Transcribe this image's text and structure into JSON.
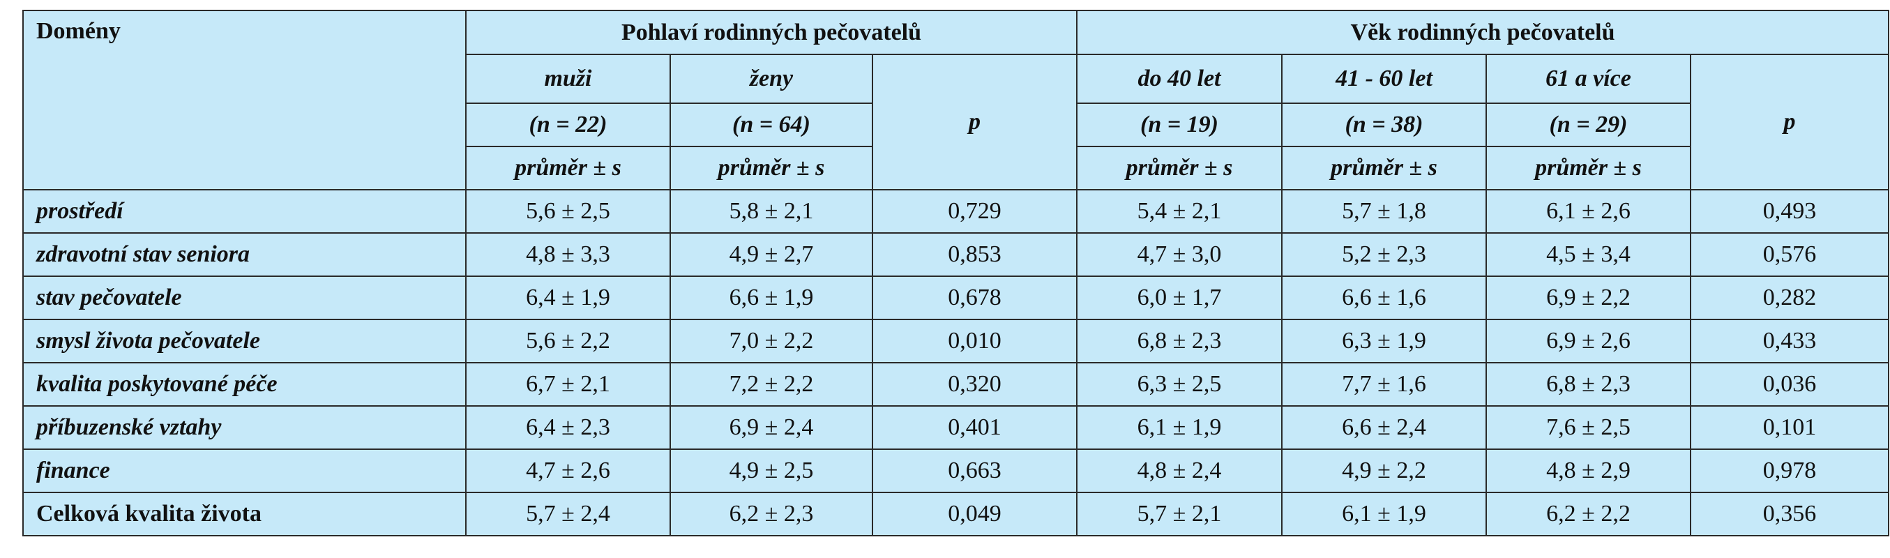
{
  "table": {
    "corner_label": "Domény",
    "groups": [
      {
        "title": "Pohlaví rodinných pečovatelů"
      },
      {
        "title": "Věk rodinných pečovatelů"
      }
    ],
    "columns": [
      {
        "label": "muži",
        "n": "(n = 22)",
        "stat": "průměr ± s"
      },
      {
        "label": "ženy",
        "n": "(n = 64)",
        "stat": "průměr ± s"
      },
      {
        "label": "p"
      },
      {
        "label": "do 40 let",
        "n": "(n = 19)",
        "stat": "průměr ± s"
      },
      {
        "label": "41 - 60 let",
        "n": "(n = 38)",
        "stat": "průměr ± s"
      },
      {
        "label": "61 a více",
        "n": "(n = 29)",
        "stat": "průměr ± s"
      },
      {
        "label": "p"
      }
    ],
    "rows": [
      {
        "domain": "prostředí",
        "values": [
          "5,6 ± 2,5",
          "5,8 ± 2,1",
          "0,729",
          "5,4 ± 2,1",
          "5,7 ± 1,8",
          "6,1 ± 2,6",
          "0,493"
        ]
      },
      {
        "domain": "zdravotní stav seniora",
        "values": [
          "4,8 ± 3,3",
          "4,9 ± 2,7",
          "0,853",
          "4,7 ± 3,0",
          "5,2 ± 2,3",
          "4,5 ± 3,4",
          "0,576"
        ]
      },
      {
        "domain": "stav pečovatele",
        "values": [
          "6,4 ± 1,9",
          "6,6 ± 1,9",
          "0,678",
          "6,0 ± 1,7",
          "6,6 ± 1,6",
          "6,9 ± 2,2",
          "0,282"
        ]
      },
      {
        "domain": "smysl života pečovatele",
        "values": [
          "5,6 ± 2,2",
          "7,0 ± 2,2",
          "0,010",
          "6,8 ± 2,3",
          "6,3 ± 1,9",
          "6,9 ± 2,6",
          "0,433"
        ]
      },
      {
        "domain": "kvalita poskytované péče",
        "values": [
          "6,7 ± 2,1",
          "7,2 ± 2,2",
          "0,320",
          "6,3 ± 2,5",
          "7,7 ± 1,6",
          "6,8 ± 2,3",
          "0,036"
        ]
      },
      {
        "domain": "příbuzenské vztahy",
        "values": [
          "6,4 ± 2,3",
          "6,9 ± 2,4",
          "0,401",
          "6,1 ± 1,9",
          "6,6 ± 2,4",
          "7,6 ± 2,5",
          "0,101"
        ]
      },
      {
        "domain": "finance",
        "values": [
          "4,7 ± 2,6",
          "4,9 ± 2,5",
          "0,663",
          "4,8 ± 2,4",
          "4,9 ± 2,2",
          "4,8 ± 2,9",
          "0,978"
        ]
      },
      {
        "domain": "Celková kvalita života",
        "values": [
          "5,7 ± 2,4",
          "6,2 ± 2,3",
          "0,049",
          "5,7 ± 2,1",
          "6,1 ± 1,9",
          "6,2 ± 2,2",
          "0,356"
        ],
        "bold_upright": true
      }
    ]
  },
  "colors": {
    "background": "#c6e9f9",
    "border": "#2a2a2a",
    "text": "#111111"
  }
}
